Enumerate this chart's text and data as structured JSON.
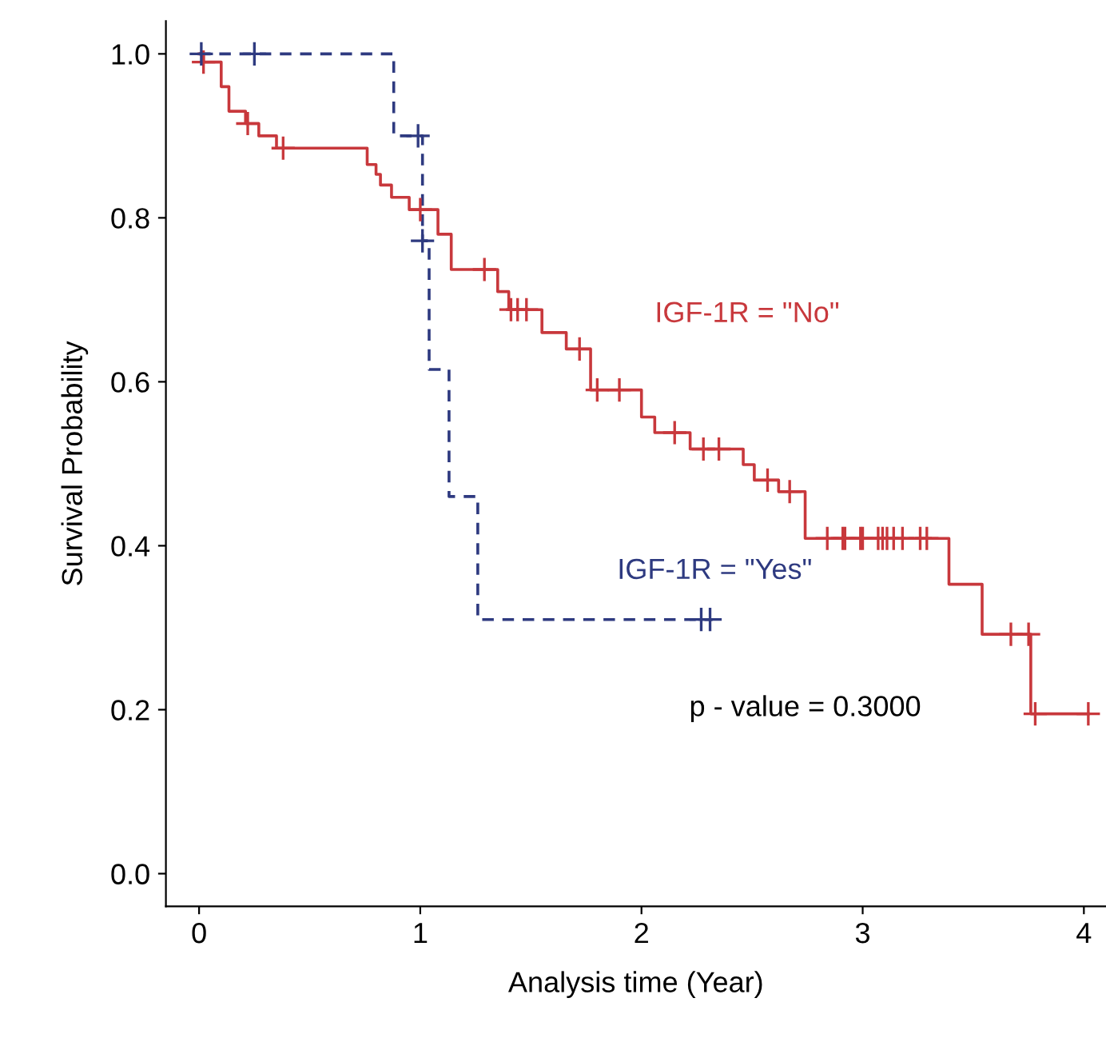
{
  "chart_data": {
    "type": "step",
    "xlabel": "Analysis time (Year)",
    "ylabel": "Survival Probability",
    "xlim": [
      -0.15,
      4.1
    ],
    "ylim": [
      -0.04,
      1.04
    ],
    "xticks": [
      0,
      1,
      2,
      3,
      4
    ],
    "yticks": [
      {
        "value": 0,
        "label": "0.0"
      },
      {
        "value": 0.2,
        "label": "0.2"
      },
      {
        "value": 0.4,
        "label": "0.4"
      },
      {
        "value": 0.6,
        "label": "0.6"
      },
      {
        "value": 0.8,
        "label": "0.8"
      },
      {
        "value": 1,
        "label": "1.0"
      }
    ],
    "grid": false,
    "legend": false,
    "annotations": [
      "p - value = 0.3000"
    ],
    "series": [
      {
        "name": "IGF-1R = \"No\"",
        "color": "#c8383c",
        "line_style": "solid",
        "x": [
          0,
          0.02,
          0.1,
          0.135,
          0.21,
          0.27,
          0.35,
          0.76,
          0.8,
          0.82,
          0.87,
          0.95,
          1.08,
          1.14,
          1.35,
          1.4,
          1.55,
          1.66,
          1.77,
          2.0,
          2.06,
          2.22,
          2.46,
          2.51,
          2.62,
          2.74,
          3.39,
          3.54,
          3.76,
          4.02
        ],
        "values": [
          1.0,
          0.99,
          0.96,
          0.93,
          0.915,
          0.9,
          0.885,
          0.865,
          0.853,
          0.84,
          0.825,
          0.81,
          0.78,
          0.737,
          0.71,
          0.688,
          0.66,
          0.64,
          0.59,
          0.557,
          0.538,
          0.518,
          0.499,
          0.48,
          0.466,
          0.409,
          0.353,
          0.292,
          0.195,
          0.195
        ]
      },
      {
        "name": "IGF-1R = \"Yes\"",
        "color": "#2e3a80",
        "line_style": "dashed",
        "x": [
          0,
          0.88,
          1.01,
          1.04,
          1.13,
          1.26,
          2.32
        ],
        "values": [
          1.0,
          0.9,
          0.772,
          0.615,
          0.46,
          0.31,
          0.31
        ]
      },
      {
        "type": "scatter",
        "marker": "cross",
        "color": "#c8383c",
        "x": [
          0.02,
          0.22,
          0.38,
          1.0,
          1.29,
          1.41,
          1.44,
          1.48,
          1.72,
          1.8,
          1.9,
          2.15,
          2.28,
          2.35,
          2.57,
          2.67,
          2.84,
          2.91,
          2.92,
          2.99,
          3.0,
          3.07,
          3.09,
          3.11,
          3.14,
          3.18,
          3.26,
          3.29,
          3.67,
          3.75,
          3.78,
          4.02
        ],
        "values": [
          0.99,
          0.915,
          0.885,
          0.81,
          0.737,
          0.688,
          0.688,
          0.688,
          0.64,
          0.59,
          0.59,
          0.538,
          0.518,
          0.518,
          0.48,
          0.466,
          0.409,
          0.409,
          0.409,
          0.409,
          0.409,
          0.409,
          0.409,
          0.409,
          0.409,
          0.409,
          0.409,
          0.409,
          0.292,
          0.292,
          0.195,
          0.195
        ]
      },
      {
        "type": "scatter",
        "marker": "cross",
        "color": "#2e3a80",
        "x": [
          0.01,
          0.25,
          0.99,
          1.01,
          2.27,
          2.31
        ],
        "values": [
          1.0,
          1.0,
          0.9,
          0.772,
          0.31,
          0.31
        ]
      }
    ]
  }
}
